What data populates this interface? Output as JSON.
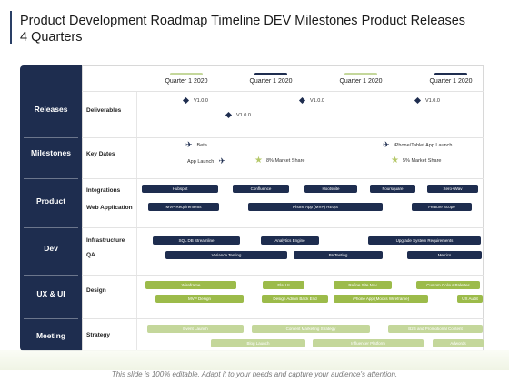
{
  "title": "Product Development Roadmap Timeline DEV Milestones Product Releases 4 Quarters",
  "footer": "This slide is 100% editable. Adapt it to your needs and capture your audience's attention.",
  "colors": {
    "navy": "#1e2d4f",
    "green": "#9cbb4a",
    "light_green": "#c4d79b"
  },
  "quarters": [
    "Quarter 1 2020",
    "Quarter 1 2020",
    "Quarter 1 2020",
    "Quarter 1 2020"
  ],
  "categories": [
    "Releases",
    "Milestones",
    "Product",
    "Dev",
    "UX & UI",
    "Meeting"
  ],
  "subrows": {
    "deliverables": "Deliverables",
    "key_dates": "Key Dates",
    "integrations": "Integrations",
    "web_application": "Web Application",
    "infrastructure": "Infrastructure",
    "qa": "QA",
    "design": "Design",
    "strategy": "Strategy"
  },
  "releases": [
    "V1.0.0",
    "V1.0.0",
    "V1.0.0",
    "V1.0.0"
  ],
  "milestones": {
    "beta": "Beta",
    "app_launch": "App Launch",
    "market_share_8": "8% Market Share",
    "iphone_launch": "iPhone/Tablet App Launch",
    "market_share_5": "5% Market Share"
  },
  "bars": {
    "integrations": [
      "Hubspot",
      "Confluence",
      "Hootsuite",
      "Foursquare",
      "Xero+Wav"
    ],
    "web_application": [
      "MVP Requirements",
      "Phone App (MVP) REQS",
      "Feature Scope"
    ],
    "infrastructure": [
      "SQL DB Streamline",
      "Analytics Engine",
      "Upgrade System Requirements"
    ],
    "qa": [
      "Variance Testing",
      "PA Testing",
      "Metrics"
    ],
    "design_top": [
      "Wireframe",
      "Flat UI",
      "Refine Site Nav",
      "Custom Colour Palettes"
    ],
    "design_bottom": [
      "MVP Design",
      "Design Admin Back End",
      "iPhone App (Mocks Wireframe)",
      "UX Audit"
    ],
    "strategy_top": [
      "Event Launch",
      "Content Marketing Strategy",
      "B2B and Promotional Content"
    ],
    "strategy_bottom": [
      "Blog Launch",
      "Influencer Platform",
      "Adwords"
    ]
  }
}
